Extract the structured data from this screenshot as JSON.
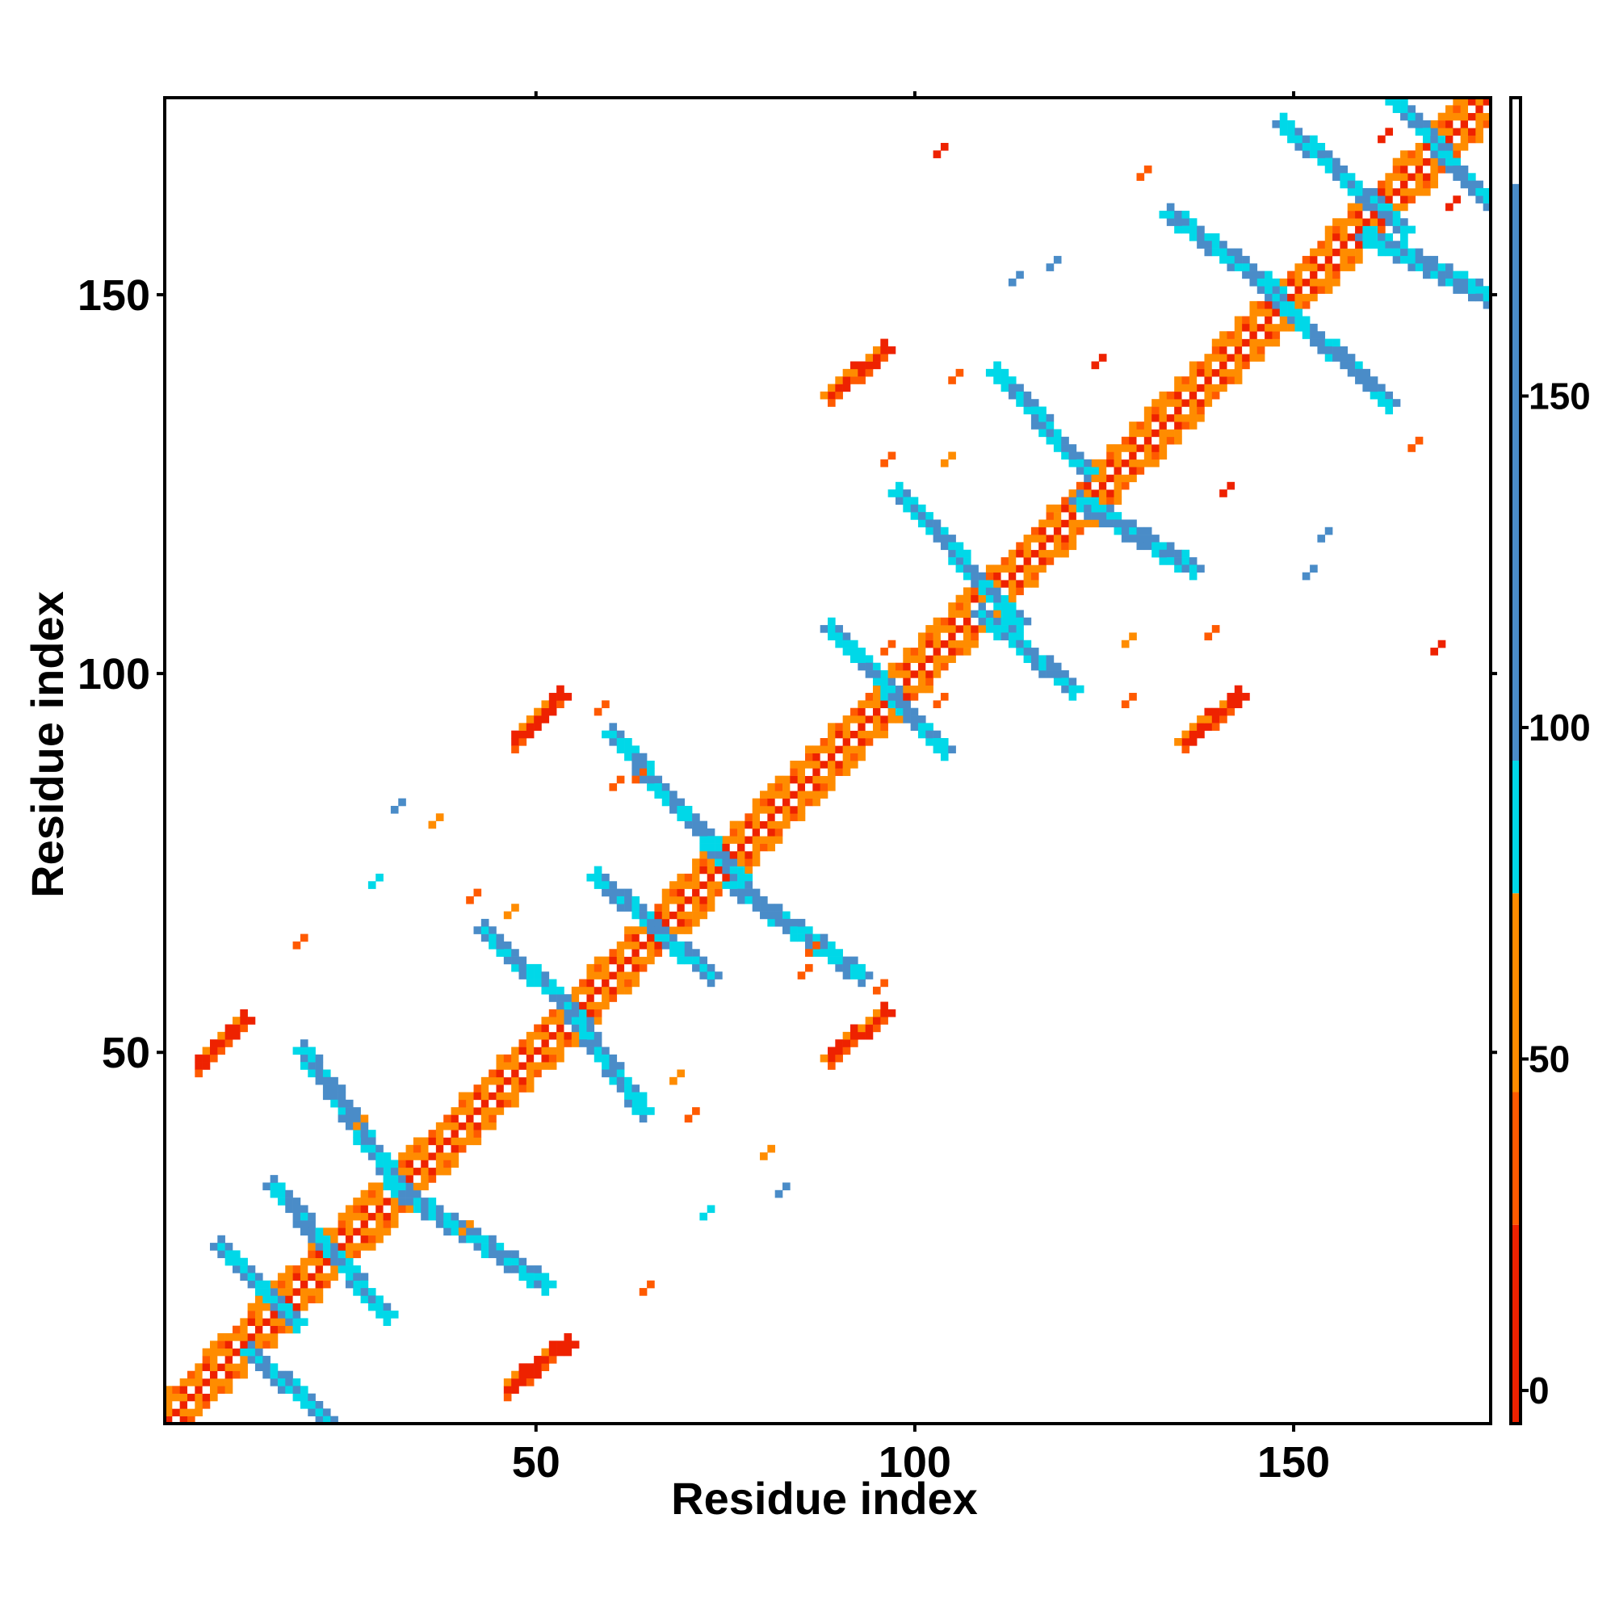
{
  "chart_data": {
    "type": "heatmap",
    "title": "",
    "xlabel": "Residue index",
    "ylabel": "Residue index",
    "xlim": [
      1,
      176
    ],
    "ylim": [
      1,
      176
    ],
    "xticks": [
      50,
      100,
      150
    ],
    "yticks": [
      50,
      100,
      150
    ],
    "colorbar": {
      "ticks": [
        0,
        50,
        100,
        150
      ],
      "range": [
        -5,
        195
      ],
      "bands": [
        {
          "from": -5,
          "to": 25,
          "color": "#ee2200"
        },
        {
          "from": 25,
          "to": 45,
          "color": "#ff5a00"
        },
        {
          "from": 45,
          "to": 75,
          "color": "#ff8c00"
        },
        {
          "from": 75,
          "to": 95,
          "color": "#00d8e8"
        },
        {
          "from": 95,
          "to": 182,
          "color": "#4a8cc8"
        },
        {
          "from": 182,
          "to": 195,
          "color": "#ffffff"
        }
      ]
    },
    "features": [
      {
        "kind": "diagonal",
        "from": 1,
        "to": 176,
        "width": 4,
        "palette": [
          "red",
          "orange",
          "white"
        ]
      },
      {
        "kind": "helix-band",
        "x": [
          8,
          18
        ],
        "y": [
          24,
          14
        ],
        "color": "blue"
      },
      {
        "kind": "helix-band",
        "x": [
          12,
          22
        ],
        "y": [
          10,
          1
        ],
        "color": "blue"
      },
      {
        "kind": "helix-band",
        "x": [
          15,
          30
        ],
        "y": [
          32,
          15
        ],
        "color": "blue"
      },
      {
        "kind": "helix-band",
        "x": [
          19,
          31
        ],
        "y": [
          50,
          33
        ],
        "color": "blue"
      },
      {
        "kind": "helix-band",
        "x": [
          31,
          51
        ],
        "y": [
          32,
          19
        ],
        "color": "blue"
      },
      {
        "kind": "helix-band",
        "x": [
          43,
          56
        ],
        "y": [
          66,
          54
        ],
        "color": "blue"
      },
      {
        "kind": "helix-band",
        "x": [
          55,
          64
        ],
        "y": [
          54,
          42
        ],
        "color": "blue"
      },
      {
        "kind": "helix-band",
        "x": [
          58,
          73
        ],
        "y": [
          73,
          60
        ],
        "color": "blue"
      },
      {
        "kind": "helix-band",
        "x": [
          60,
          77
        ],
        "y": [
          92,
          73
        ],
        "color": "blue"
      },
      {
        "kind": "helix-band",
        "x": [
          76,
          93
        ],
        "y": [
          72,
          60
        ],
        "color": "blue"
      },
      {
        "kind": "helix-band",
        "x": [
          89,
          104
        ],
        "y": [
          106,
          90
        ],
        "color": "blue"
      },
      {
        "kind": "helix-band",
        "x": [
          98,
          114
        ],
        "y": [
          124,
          107
        ],
        "color": "blue"
      },
      {
        "kind": "helix-band",
        "x": [
          109,
          121
        ],
        "y": [
          108,
          98
        ],
        "color": "blue"
      },
      {
        "kind": "helix-band",
        "x": [
          111,
          123
        ],
        "y": [
          140,
          127
        ],
        "color": "blue"
      },
      {
        "kind": "helix-band",
        "x": [
          122,
          137
        ],
        "y": [
          123,
          114
        ],
        "color": "blue"
      },
      {
        "kind": "helix-band",
        "x": [
          134,
          148
        ],
        "y": [
          161,
          151
        ],
        "color": "blue"
      },
      {
        "kind": "helix-band",
        "x": [
          148,
          163
        ],
        "y": [
          150,
          136
        ],
        "color": "blue"
      },
      {
        "kind": "helix-band",
        "x": [
          149,
          165
        ],
        "y": [
          173,
          159
        ],
        "color": "blue"
      },
      {
        "kind": "helix-band",
        "x": [
          160,
          176
        ],
        "y": [
          158,
          150
        ],
        "color": "blue"
      },
      {
        "kind": "helix-band",
        "x": [
          164,
          176
        ],
        "y": [
          176,
          163
        ],
        "color": "blue"
      },
      {
        "kind": "contact-blob",
        "x": [
          5,
          11
        ],
        "y": [
          48,
          54
        ],
        "color": "red"
      },
      {
        "kind": "contact-blob",
        "x": [
          46,
          54
        ],
        "y": [
          5,
          11
        ],
        "color": "red"
      },
      {
        "kind": "contact-blob",
        "x": [
          47,
          53
        ],
        "y": [
          91,
          97
        ],
        "color": "red"
      },
      {
        "kind": "contact-blob",
        "x": [
          89,
          96
        ],
        "y": [
          49,
          55
        ],
        "color": "red"
      },
      {
        "kind": "contact-blob",
        "x": [
          89,
          96
        ],
        "y": [
          137,
          143
        ],
        "color": "red"
      },
      {
        "kind": "contact-blob",
        "x": [
          136,
          143
        ],
        "y": [
          91,
          97
        ],
        "color": "red"
      }
    ]
  }
}
